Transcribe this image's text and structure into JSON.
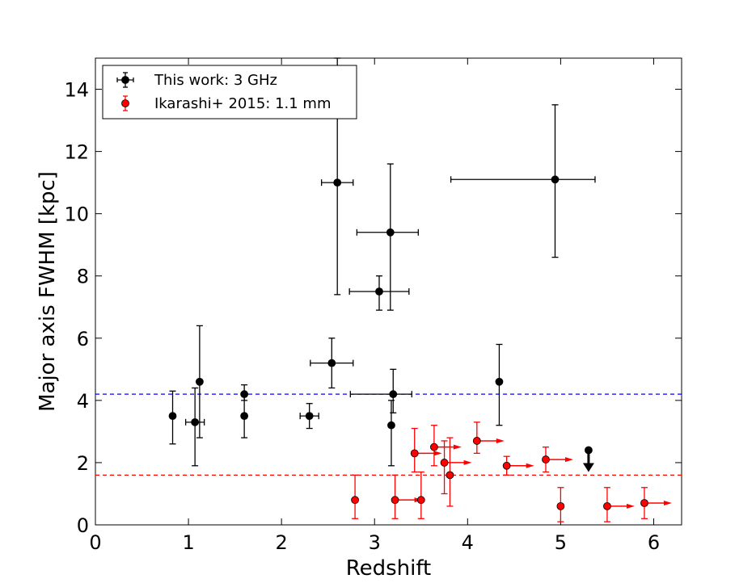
{
  "chart_data": {
    "type": "scatter",
    "xlabel": "Redshift",
    "ylabel": "Major axis FWHM [kpc]",
    "xlim": [
      0,
      6.3
    ],
    "ylim": [
      0,
      15
    ],
    "x_ticks": [
      0,
      1,
      2,
      3,
      4,
      5,
      6
    ],
    "y_ticks": [
      0,
      2,
      4,
      6,
      8,
      10,
      12,
      14
    ],
    "legend_position": "top-left",
    "reference_lines": [
      {
        "name": "blue-dashed-line",
        "y": 4.2,
        "color": "#0000ff",
        "style": "dashed"
      },
      {
        "name": "red-dashed-line",
        "y": 1.6,
        "color": "#ff0000",
        "style": "dashed"
      }
    ],
    "series": [
      {
        "name": "This work: 3 GHz",
        "color": "#000000",
        "points": [
          {
            "x": 0.83,
            "y": 3.5,
            "yerr": [
              0.9,
              0.8
            ]
          },
          {
            "x": 1.07,
            "y": 3.3,
            "yerr": [
              1.4,
              1.1
            ],
            "xerr": [
              0.1,
              0.1
            ]
          },
          {
            "x": 1.12,
            "y": 4.6,
            "yerr": [
              1.8,
              1.8
            ]
          },
          {
            "x": 1.6,
            "y": 4.2,
            "yerr": [
              0.2,
              0.3
            ]
          },
          {
            "x": 1.6,
            "y": 3.5,
            "yerr": [
              0.7,
              0.7
            ]
          },
          {
            "x": 2.3,
            "y": 3.5,
            "yerr": [
              0.4,
              0.4
            ],
            "xerr": [
              0.1,
              0.1
            ]
          },
          {
            "x": 2.54,
            "y": 5.2,
            "yerr": [
              0.8,
              0.8
            ],
            "xerr": [
              0.23,
              0.23
            ]
          },
          {
            "x": 2.6,
            "y": 11.0,
            "yerr": [
              3.6,
              4.0
            ],
            "xerr": [
              0.17,
              0.17
            ]
          },
          {
            "x": 3.05,
            "y": 7.5,
            "yerr": [
              0.6,
              0.5
            ],
            "xerr": [
              0.32,
              0.32
            ]
          },
          {
            "x": 3.17,
            "y": 9.4,
            "yerr": [
              2.5,
              2.2
            ],
            "xerr": [
              0.36,
              0.3
            ]
          },
          {
            "x": 3.2,
            "y": 4.2,
            "yerr": [
              0.6,
              0.8
            ],
            "xerr": [
              0.46,
              0.2
            ]
          },
          {
            "x": 3.18,
            "y": 3.2,
            "yerr": [
              1.3,
              0.8
            ]
          },
          {
            "x": 4.34,
            "y": 4.6,
            "yerr": [
              1.4,
              1.2
            ]
          },
          {
            "x": 4.94,
            "y": 11.1,
            "yerr": [
              2.5,
              2.4
            ],
            "xerr": [
              1.12,
              0.43
            ]
          },
          {
            "x": 5.3,
            "y": 2.4,
            "upper_limit": true
          }
        ]
      },
      {
        "name": "Ikarashi+ 2015: 1.1 mm",
        "color": "#ff0000",
        "points": [
          {
            "x": 2.79,
            "y": 0.8,
            "yerr": [
              0.6,
              0.8
            ]
          },
          {
            "x": 3.22,
            "y": 0.8,
            "yerr": [
              0.6,
              0.8
            ],
            "lower_limit_x": true
          },
          {
            "x": 3.5,
            "y": 0.8,
            "yerr": [
              0.6,
              0.9
            ]
          },
          {
            "x": 3.43,
            "y": 2.3,
            "yerr": [
              0.6,
              0.8
            ],
            "lower_limit_x": true
          },
          {
            "x": 3.64,
            "y": 2.5,
            "yerr": [
              0.6,
              0.7
            ],
            "lower_limit_x": true
          },
          {
            "x": 3.75,
            "y": 2.0,
            "yerr": [
              1.0,
              0.7
            ],
            "lower_limit_x": true
          },
          {
            "x": 3.81,
            "y": 1.6,
            "yerr": [
              1.0,
              1.2
            ]
          },
          {
            "x": 4.1,
            "y": 2.7,
            "yerr": [
              0.4,
              0.6
            ],
            "lower_limit_x": true
          },
          {
            "x": 4.42,
            "y": 1.9,
            "yerr": [
              0.3,
              0.3
            ],
            "lower_limit_x": true
          },
          {
            "x": 4.84,
            "y": 2.1,
            "yerr": [
              0.4,
              0.4
            ],
            "lower_limit_x": true
          },
          {
            "x": 5.0,
            "y": 0.6,
            "yerr": [
              0.5,
              0.6
            ]
          },
          {
            "x": 5.5,
            "y": 0.6,
            "yerr": [
              0.5,
              0.6
            ],
            "lower_limit_x": true
          },
          {
            "x": 5.9,
            "y": 0.7,
            "yerr": [
              0.5,
              0.5
            ],
            "lower_limit_x": true
          }
        ]
      }
    ]
  }
}
